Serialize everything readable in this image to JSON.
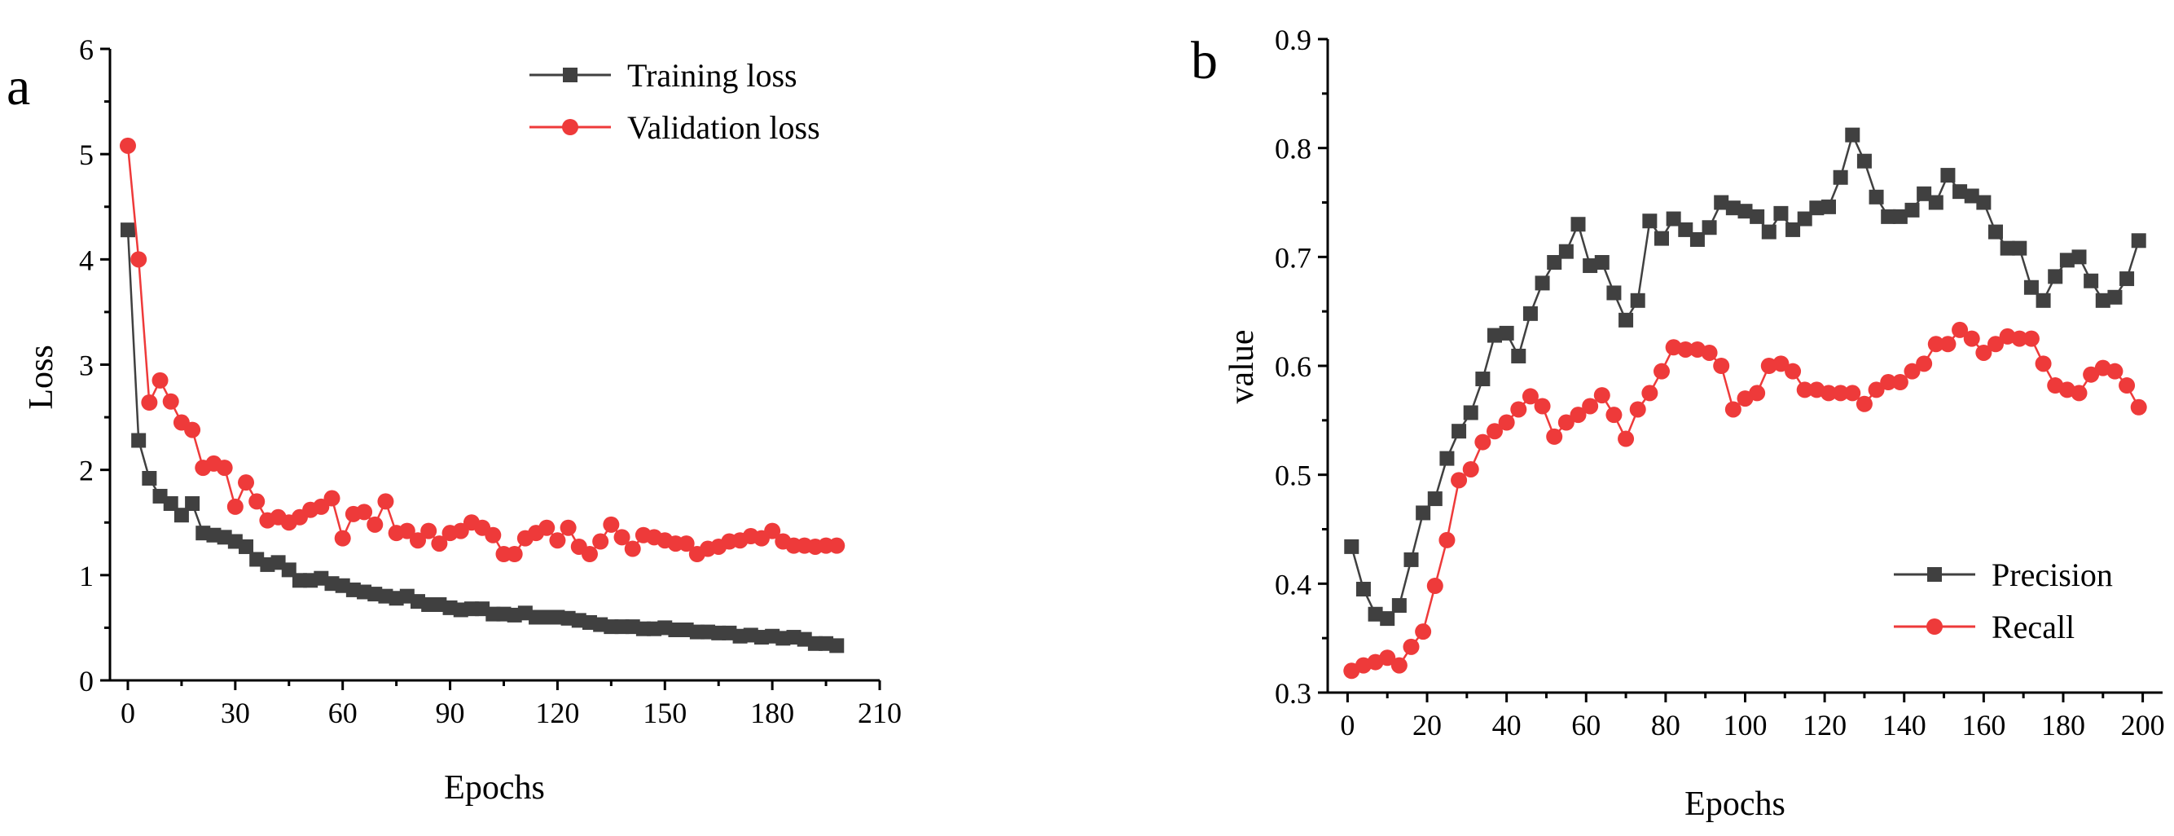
{
  "chart_data": [
    {
      "type": "line",
      "panel_label": "a",
      "title": "",
      "xlabel": "Epochs",
      "ylabel": "Loss",
      "xlim": [
        -5,
        210
      ],
      "ylim": [
        0,
        6
      ],
      "xticks": [
        0,
        30,
        60,
        90,
        120,
        150,
        180,
        210
      ],
      "yticks": [
        0,
        1,
        2,
        3,
        4,
        5,
        6
      ],
      "legend_position": "top-right",
      "grid": false,
      "series": [
        {
          "name": "Training loss",
          "color": "#404040",
          "marker": "square",
          "x": [
            0,
            3,
            6,
            9,
            12,
            15,
            18,
            21,
            24,
            27,
            30,
            33,
            36,
            39,
            42,
            45,
            48,
            51,
            54,
            57,
            60,
            63,
            66,
            69,
            72,
            75,
            78,
            81,
            84,
            87,
            90,
            93,
            96,
            99,
            102,
            105,
            108,
            111,
            114,
            117,
            120,
            123,
            126,
            129,
            132,
            135,
            138,
            141,
            144,
            147,
            150,
            153,
            156,
            159,
            162,
            165,
            168,
            171,
            174,
            177,
            180,
            183,
            186,
            189,
            192,
            195,
            198
          ],
          "values": [
            4.28,
            2.28,
            1.92,
            1.75,
            1.68,
            1.57,
            1.68,
            1.4,
            1.38,
            1.36,
            1.32,
            1.27,
            1.15,
            1.1,
            1.12,
            1.05,
            0.95,
            0.95,
            0.97,
            0.92,
            0.9,
            0.86,
            0.84,
            0.82,
            0.8,
            0.78,
            0.8,
            0.75,
            0.72,
            0.72,
            0.69,
            0.67,
            0.68,
            0.68,
            0.63,
            0.63,
            0.62,
            0.64,
            0.6,
            0.6,
            0.6,
            0.59,
            0.57,
            0.55,
            0.53,
            0.51,
            0.51,
            0.51,
            0.49,
            0.49,
            0.5,
            0.48,
            0.48,
            0.46,
            0.46,
            0.45,
            0.45,
            0.42,
            0.43,
            0.41,
            0.42,
            0.4,
            0.41,
            0.39,
            0.35,
            0.35,
            0.33
          ]
        },
        {
          "name": "Validation loss",
          "color": "#ee3a3a",
          "marker": "circle",
          "x": [
            0,
            3,
            6,
            9,
            12,
            15,
            18,
            21,
            24,
            27,
            30,
            33,
            36,
            39,
            42,
            45,
            48,
            51,
            54,
            57,
            60,
            63,
            66,
            69,
            72,
            75,
            78,
            81,
            84,
            87,
            90,
            93,
            96,
            99,
            102,
            105,
            108,
            111,
            114,
            117,
            120,
            123,
            126,
            129,
            132,
            135,
            138,
            141,
            144,
            147,
            150,
            153,
            156,
            159,
            162,
            165,
            168,
            171,
            174,
            177,
            180,
            183,
            186,
            189,
            192,
            195,
            198
          ],
          "values": [
            5.08,
            4.0,
            2.64,
            2.85,
            2.65,
            2.45,
            2.38,
            2.02,
            2.06,
            2.02,
            1.65,
            1.88,
            1.7,
            1.52,
            1.55,
            1.5,
            1.55,
            1.62,
            1.65,
            1.73,
            1.35,
            1.58,
            1.6,
            1.48,
            1.7,
            1.4,
            1.42,
            1.33,
            1.42,
            1.3,
            1.4,
            1.42,
            1.5,
            1.45,
            1.38,
            1.2,
            1.2,
            1.35,
            1.4,
            1.45,
            1.33,
            1.45,
            1.27,
            1.2,
            1.32,
            1.48,
            1.36,
            1.25,
            1.38,
            1.36,
            1.33,
            1.3,
            1.3,
            1.2,
            1.25,
            1.27,
            1.32,
            1.33,
            1.37,
            1.35,
            1.42,
            1.32,
            1.28,
            1.28,
            1.27,
            1.28,
            1.28
          ]
        }
      ]
    },
    {
      "type": "line",
      "panel_label": "b",
      "title": "",
      "xlabel": "Epochs",
      "ylabel": "value",
      "xlim": [
        -5,
        205
      ],
      "ylim": [
        0.3,
        0.9
      ],
      "xticks": [
        0,
        20,
        40,
        60,
        80,
        100,
        120,
        140,
        160,
        180,
        200
      ],
      "yticks": [
        0.3,
        0.4,
        0.5,
        0.6,
        0.7,
        0.8,
        0.9
      ],
      "legend_position": "bottom-right",
      "grid": false,
      "series": [
        {
          "name": "Precision",
          "color": "#404040",
          "marker": "square",
          "x": [
            1,
            4,
            7,
            10,
            13,
            16,
            19,
            22,
            25,
            28,
            31,
            34,
            37,
            40,
            43,
            46,
            49,
            52,
            55,
            58,
            61,
            64,
            67,
            70,
            73,
            76,
            79,
            82,
            85,
            88,
            91,
            94,
            97,
            100,
            103,
            106,
            109,
            112,
            115,
            118,
            121,
            124,
            127,
            130,
            133,
            136,
            139,
            142,
            145,
            148,
            151,
            154,
            157,
            160,
            163,
            166,
            169,
            172,
            175,
            178,
            181,
            184,
            187,
            190,
            193,
            196,
            199
          ],
          "values": [
            0.434,
            0.395,
            0.372,
            0.368,
            0.38,
            0.422,
            0.465,
            0.478,
            0.515,
            0.54,
            0.557,
            0.588,
            0.628,
            0.63,
            0.609,
            0.648,
            0.676,
            0.695,
            0.705,
            0.73,
            0.692,
            0.695,
            0.667,
            0.642,
            0.66,
            0.733,
            0.717,
            0.735,
            0.725,
            0.716,
            0.727,
            0.75,
            0.745,
            0.742,
            0.737,
            0.723,
            0.74,
            0.725,
            0.735,
            0.745,
            0.746,
            0.773,
            0.812,
            0.788,
            0.755,
            0.737,
            0.737,
            0.743,
            0.758,
            0.75,
            0.775,
            0.76,
            0.756,
            0.75,
            0.723,
            0.708,
            0.708,
            0.672,
            0.66,
            0.682,
            0.697,
            0.7,
            0.678,
            0.66,
            0.663,
            0.68,
            0.715
          ]
        },
        {
          "name": "Recall",
          "color": "#ee3a3a",
          "marker": "circle",
          "x": [
            1,
            4,
            7,
            10,
            13,
            16,
            19,
            22,
            25,
            28,
            31,
            34,
            37,
            40,
            43,
            46,
            49,
            52,
            55,
            58,
            61,
            64,
            67,
            70,
            73,
            76,
            79,
            82,
            85,
            88,
            91,
            94,
            97,
            100,
            103,
            106,
            109,
            112,
            115,
            118,
            121,
            124,
            127,
            130,
            133,
            136,
            139,
            142,
            145,
            148,
            151,
            154,
            157,
            160,
            163,
            166,
            169,
            172,
            175,
            178,
            181,
            184,
            187,
            190,
            193,
            196,
            199
          ],
          "values": [
            0.32,
            0.325,
            0.328,
            0.332,
            0.325,
            0.342,
            0.356,
            0.398,
            0.44,
            0.495,
            0.505,
            0.53,
            0.54,
            0.548,
            0.56,
            0.572,
            0.563,
            0.535,
            0.548,
            0.555,
            0.563,
            0.573,
            0.555,
            0.533,
            0.56,
            0.575,
            0.595,
            0.617,
            0.615,
            0.615,
            0.612,
            0.6,
            0.56,
            0.57,
            0.575,
            0.6,
            0.602,
            0.595,
            0.578,
            0.578,
            0.575,
            0.575,
            0.575,
            0.565,
            0.578,
            0.585,
            0.585,
            0.595,
            0.602,
            0.62,
            0.62,
            0.633,
            0.625,
            0.612,
            0.62,
            0.627,
            0.625,
            0.625,
            0.602,
            0.582,
            0.578,
            0.575,
            0.592,
            0.598,
            0.595,
            0.582,
            0.562
          ]
        }
      ]
    }
  ]
}
